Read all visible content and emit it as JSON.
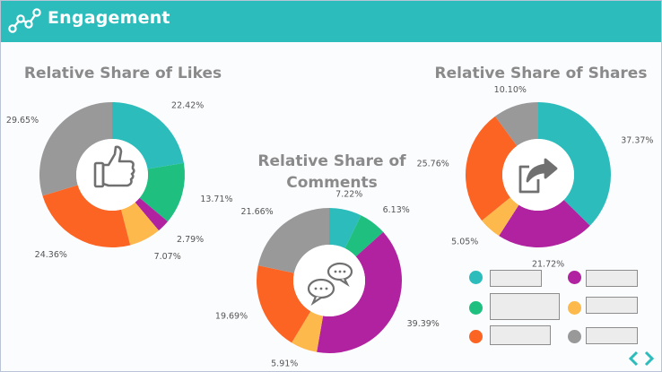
{
  "header": {
    "title": "Engagement",
    "icon": "network-nodes-icon"
  },
  "colors": {
    "teal": "#2dbcbc",
    "green": "#1fbf80",
    "magenta": "#b0229f",
    "yellow": "#fdb94c",
    "orange": "#fb6423",
    "gray": "#999999"
  },
  "chart_data": [
    {
      "type": "pie",
      "variant": "donut",
      "title": "Relative Share of Likes",
      "icon": "thumbs-up-icon",
      "labels": [
        "22.42%",
        "13.71%",
        "2.79%",
        "7.07%",
        "24.36%",
        "29.65%"
      ],
      "values": [
        22.42,
        13.71,
        2.79,
        7.07,
        24.36,
        29.65
      ],
      "colors": [
        "#2dbcbc",
        "#1fbf80",
        "#b0229f",
        "#fdb94c",
        "#fb6423",
        "#999999"
      ]
    },
    {
      "type": "pie",
      "variant": "donut",
      "title": "Relative Share of Comments",
      "icon": "chat-bubbles-icon",
      "labels": [
        "7.22%",
        "6.13%",
        "39.39%",
        "5.91%",
        "19.69%",
        "21.66%"
      ],
      "values": [
        7.22,
        6.13,
        39.39,
        5.91,
        19.69,
        21.66
      ],
      "colors": [
        "#2dbcbc",
        "#1fbf80",
        "#b0229f",
        "#fdb94c",
        "#fb6423",
        "#999999"
      ]
    },
    {
      "type": "pie",
      "variant": "donut",
      "title": "Relative Share of Shares",
      "icon": "share-arrow-icon",
      "labels": [
        "37.37%",
        "21.72%",
        "5.05%",
        "25.76%",
        "10.10%"
      ],
      "values": [
        37.37,
        21.72,
        5.05,
        25.76,
        10.1
      ],
      "colors": [
        "#2dbcbc",
        "#b0229f",
        "#fdb94c",
        "#fb6423",
        "#999999"
      ]
    }
  ],
  "legend": {
    "entries": [
      {
        "color": "#2dbcbc",
        "label": ""
      },
      {
        "color": "#b0229f",
        "label": ""
      },
      {
        "color": "#1fbf80",
        "label": ""
      },
      {
        "color": "#fdb94c",
        "label": ""
      },
      {
        "color": "#fb6423",
        "label": ""
      },
      {
        "color": "#999999",
        "label": ""
      }
    ]
  },
  "brand": {
    "logo": "chevron-logo-icon"
  }
}
